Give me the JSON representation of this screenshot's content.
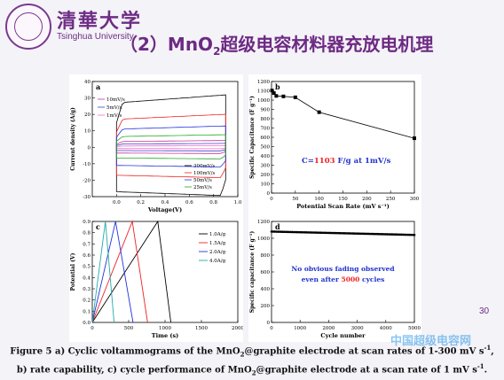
{
  "header": {
    "logo_cn": "清華大学",
    "logo_en": "Tsinghua University",
    "title_prefix": "（2）MnO",
    "title_sub": "2",
    "title_suffix": "超级电容材料器充放电机理"
  },
  "chart_data": [
    {
      "panel": "a",
      "type": "line",
      "xlabel": "Voltage(V)",
      "ylabel": "Current density (A/g)",
      "xlim": [
        -0.2,
        1.0
      ],
      "ylim": [
        -30,
        40
      ],
      "xticks": [
        "0.0",
        "0.2",
        "0.4",
        "0.6",
        "0.8",
        "1.0"
      ],
      "yticks": [
        "-30",
        "-20",
        "-10",
        "0",
        "10",
        "20",
        "30",
        "40"
      ],
      "series": [
        {
          "name": "10mV/s",
          "half_width": 3.5,
          "color": "#cc3399"
        },
        {
          "name": "5mV/s",
          "half_width": 2.0,
          "color": "#3344cc"
        },
        {
          "name": "1mV/s",
          "half_width": 0.8,
          "color": "#ff66cc"
        },
        {
          "name": "300mV/s",
          "half_width": 27,
          "color": "#000000"
        },
        {
          "name": "100mV/s",
          "half_width": 17,
          "color": "#ee2222"
        },
        {
          "name": "50mV/s",
          "half_width": 11,
          "color": "#2233dd"
        },
        {
          "name": "25mV/s",
          "half_width": 6.5,
          "color": "#22aa22"
        }
      ]
    },
    {
      "panel": "b",
      "type": "line",
      "xlabel": "Potential Scan Rate (mV s⁻¹)",
      "ylabel": "Specific Capacitance (F g⁻¹)",
      "xlim": [
        0,
        300
      ],
      "ylim": [
        0,
        1200
      ],
      "xticks": [
        "0",
        "50",
        "100",
        "150",
        "200",
        "250",
        "300"
      ],
      "yticks": [
        "0",
        "100",
        "200",
        "300",
        "400",
        "500",
        "600",
        "700",
        "800",
        "900",
        "1000",
        "1100",
        "1200"
      ],
      "x": [
        1,
        5,
        10,
        25,
        50,
        100,
        300
      ],
      "y": [
        1103,
        1075,
        1045,
        1040,
        1030,
        870,
        590
      ],
      "annotation": {
        "prefix": "C=",
        "value": "1103",
        "suffix": " F/g at 1mV/s"
      }
    },
    {
      "panel": "c",
      "type": "line",
      "xlabel": "Time (s)",
      "ylabel": "Potential (V)",
      "xlim": [
        0,
        2000
      ],
      "ylim": [
        0,
        0.9
      ],
      "xticks": [
        "0",
        "500",
        "1000",
        "1500",
        "2000"
      ],
      "yticks": [
        "0.0",
        "0.1",
        "0.2",
        "0.3",
        "0.4",
        "0.5",
        "0.6",
        "0.7",
        "0.8",
        "0.9"
      ],
      "series": [
        {
          "name": "1.0A/g",
          "peak": 900,
          "end": 1080,
          "color": "#000000"
        },
        {
          "name": "1.5A/g",
          "peak": 550,
          "end": 760,
          "color": "#ee2222"
        },
        {
          "name": "2.0A/g",
          "peak": 320,
          "end": 560,
          "color": "#2233dd"
        },
        {
          "name": "4.0A/g",
          "peak": 180,
          "end": 300,
          "color": "#22aaaa"
        }
      ]
    },
    {
      "panel": "d",
      "type": "scatter",
      "xlabel": "Cycle number",
      "ylabel": "Specific capacitance (F g⁻¹)",
      "xlim": [
        0,
        5000
      ],
      "ylim": [
        0,
        1200
      ],
      "xticks": [
        "0",
        "1000",
        "2000",
        "3000",
        "4000",
        "5000"
      ],
      "yticks": [
        "0",
        "200",
        "400",
        "600",
        "800",
        "1000",
        "1200"
      ],
      "start": 1080,
      "end": 1040,
      "annotation_line1": "No obvious fading observed",
      "annotation_line2_prefix": "even after ",
      "annotation_line2_value": "5000",
      "annotation_line2_suffix": " cycles"
    }
  ],
  "caption": {
    "l1a": "Figure 5 a) Cyclic voltammograms of the MnO",
    "l1b": "2",
    "l1c": "@graphite electrode at scan rates of 1-300 mV s",
    "l1d": "-1",
    "l1e": ",",
    "l2a": "b) rate capability, c) cycle performance of MnO",
    "l2b": "2",
    "l2c": "@graphite electrode at a scan rate of 1 mV s",
    "l2d": "-1",
    "l2e": "."
  },
  "page_number": "30",
  "watermark": "中国超级电容网"
}
